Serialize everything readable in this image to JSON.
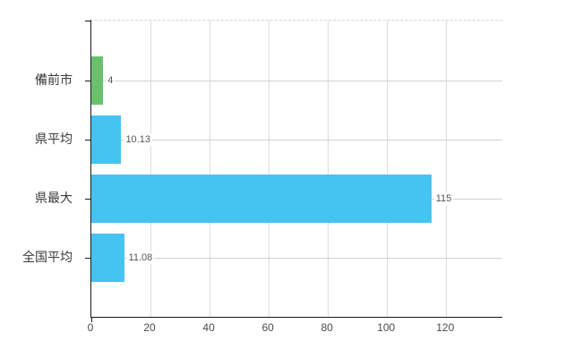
{
  "chart_data": {
    "type": "bar",
    "orientation": "horizontal",
    "title": "",
    "xlabel": "",
    "ylabel": "",
    "categories": [
      "備前市",
      "県平均",
      "県最大",
      "全国平均"
    ],
    "values": [
      4,
      10.13,
      115,
      11.08
    ],
    "value_labels": [
      "4",
      "10.13",
      "115",
      "11.08"
    ],
    "series_colors": [
      "#69c16d",
      "#45c3f1",
      "#45c3f1",
      "#45c3f1"
    ],
    "x_ticks": [
      0,
      20,
      40,
      60,
      80,
      100,
      120
    ],
    "x_tick_labels": [
      "0",
      "20",
      "40",
      "60",
      "80",
      "100",
      "120"
    ],
    "xlim": [
      0,
      139
    ],
    "grid": true,
    "legend": false
  },
  "colors": {
    "bar_highlight_green": "#69c16d",
    "bar_blue": "#45c3f1",
    "axis_line": "#1a1a1a",
    "vertical_grid": "#dcdcdc",
    "horizontal_grid": "#ccd6cc",
    "top_border_dashed": "#d4d4d4",
    "category_text": "#3a3a3a",
    "value_text": "#555555",
    "tick_text": "#4a4a4a",
    "background": "#ffffff"
  }
}
